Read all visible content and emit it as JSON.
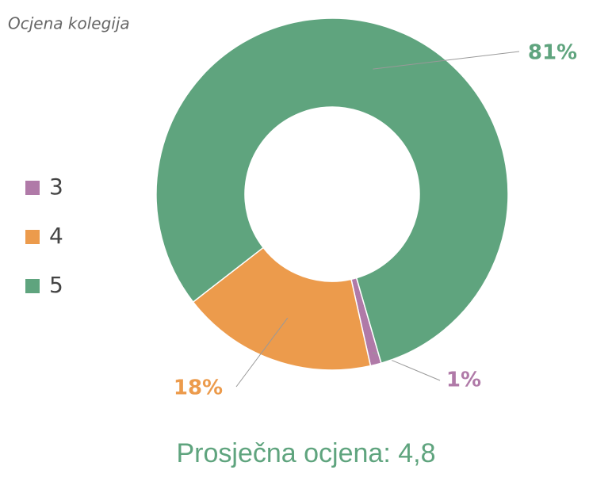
{
  "chart_data": {
    "type": "donut",
    "title": "Ocjena kolegija",
    "categories": [
      "3",
      "4",
      "5"
    ],
    "values": [
      1,
      18,
      81
    ],
    "value_labels": [
      "1%",
      "18%",
      "81%"
    ],
    "colors": [
      "#b07aa8",
      "#ec9b4c",
      "#5fa47e"
    ],
    "annotation": "Prosječna ocjena: 4,8",
    "legend": "left"
  }
}
